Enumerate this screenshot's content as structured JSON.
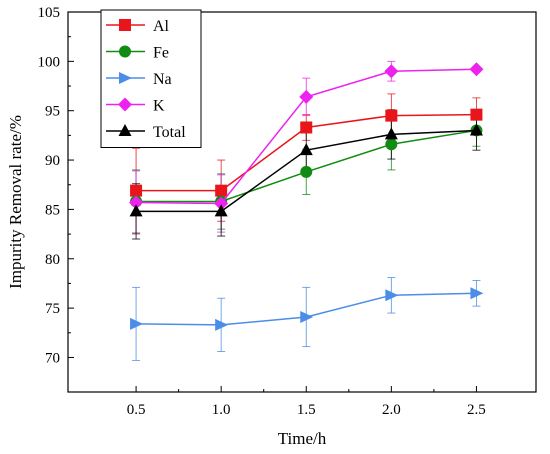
{
  "chart_data": {
    "type": "line",
    "x": [
      0.5,
      1.0,
      1.5,
      2.0,
      2.5
    ],
    "xticks": [
      "0.5",
      "1.0",
      "1.5",
      "2.0",
      "2.5"
    ],
    "yticks": [
      "70",
      "75",
      "80",
      "85",
      "90",
      "95",
      "100",
      "105"
    ],
    "xlim": [
      0.1,
      2.85
    ],
    "ylim": [
      66.5,
      105
    ],
    "xlabel": "Time/h",
    "ylabel": "Impurity Removal rate/%",
    "legend_position": "top-left",
    "series": [
      {
        "name": "Al",
        "color": "#e8161b",
        "marker": "square",
        "values": [
          86.9,
          86.9,
          93.3,
          94.5,
          94.6
        ],
        "errors": [
          4.3,
          3.1,
          1.3,
          2.2,
          1.7
        ]
      },
      {
        "name": "Fe",
        "color": "#128b12",
        "marker": "circle",
        "values": [
          85.8,
          85.8,
          88.8,
          91.6,
          93.0
        ],
        "errors": [
          3.2,
          2.8,
          2.3,
          2.6,
          1.6
        ]
      },
      {
        "name": "Na",
        "color": "#4a8ee8",
        "marker": "triangle-right",
        "values": [
          73.4,
          73.3,
          74.1,
          76.3,
          76.5
        ],
        "errors": [
          3.7,
          2.7,
          3.0,
          1.8,
          1.3
        ]
      },
      {
        "name": "K",
        "color": "#ee22ee",
        "marker": "diamond",
        "values": [
          85.7,
          85.6,
          96.4,
          99.0,
          99.2
        ],
        "errors": [
          3.2,
          2.9,
          1.9,
          1.0,
          0.0
        ]
      },
      {
        "name": "Total",
        "color": "#000000",
        "marker": "triangle-up",
        "values": [
          84.8,
          84.8,
          91.0,
          92.6,
          93.0
        ],
        "errors": [
          2.8,
          2.5,
          2.1,
          2.5,
          2.0
        ]
      }
    ]
  }
}
